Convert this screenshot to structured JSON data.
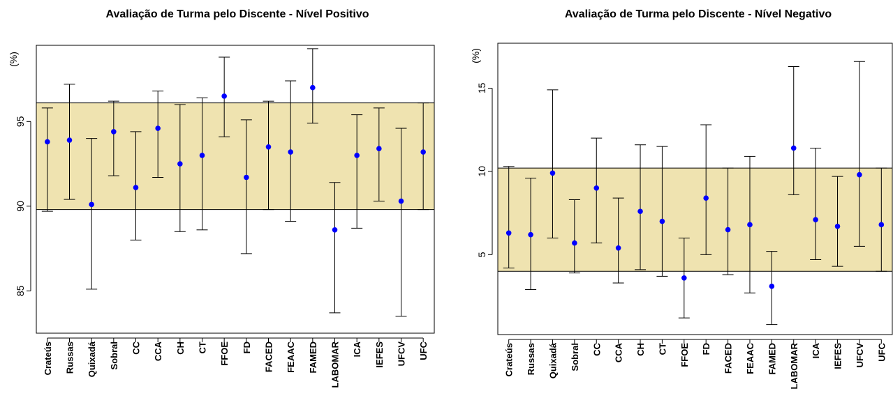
{
  "chart_data": [
    {
      "type": "errorbar",
      "title": "Avaliação de Turma pelo Discente - Nível Positivo",
      "ylabel": "(%)",
      "xlabel": "",
      "ylim": [
        82.5,
        99.5
      ],
      "yticks": [
        "85",
        "90",
        "95"
      ],
      "yticks_values": [
        85,
        90,
        95
      ],
      "band": {
        "low": 89.8,
        "high": 96.1,
        "color": "#efe3b0"
      },
      "point_color": "#0000ff",
      "categories": [
        "Crateús",
        "Russas",
        "Quixadá",
        "Sobral",
        "CC",
        "CCA",
        "CH",
        "CT",
        "FFOE",
        "FD",
        "FACED",
        "FEAAC",
        "FAMED",
        "LABOMAR",
        "ICA",
        "IEFES",
        "UFCV",
        "UFC"
      ],
      "values": [
        93.8,
        93.9,
        90.1,
        94.4,
        91.1,
        94.6,
        92.5,
        93.0,
        96.5,
        91.7,
        93.5,
        93.2,
        97.0,
        88.6,
        93.0,
        93.4,
        90.3,
        93.2
      ],
      "lower": [
        89.7,
        90.4,
        85.1,
        91.8,
        88.0,
        91.7,
        88.5,
        88.6,
        94.1,
        87.2,
        89.8,
        89.1,
        94.9,
        83.7,
        88.7,
        90.3,
        83.5,
        89.8
      ],
      "upper": [
        95.8,
        97.2,
        94.0,
        96.2,
        94.4,
        96.8,
        96.0,
        96.4,
        98.8,
        95.1,
        96.2,
        97.4,
        99.3,
        91.4,
        95.4,
        95.8,
        94.6,
        96.1
      ]
    },
    {
      "type": "errorbar",
      "title": "Avaliação de Turma pelo Discente - Nível Negativo",
      "ylabel": "(%)",
      "xlabel": "",
      "ylim": [
        0.2,
        17.7
      ],
      "yticks": [
        "5",
        "10",
        "15"
      ],
      "yticks_values": [
        5,
        10,
        15
      ],
      "band": {
        "low": 4.0,
        "high": 10.2,
        "color": "#efe3b0"
      },
      "point_color": "#0000ff",
      "categories": [
        "Crateús",
        "Russas",
        "Quixadá",
        "Sobral",
        "CC",
        "CCA",
        "CH",
        "CT",
        "FFOE",
        "FD",
        "FACED",
        "FEAAC",
        "FAMED",
        "LABOMAR",
        "ICA",
        "IEFES",
        "UFCV",
        "UFC"
      ],
      "values": [
        6.3,
        6.2,
        9.9,
        5.7,
        9.0,
        5.4,
        7.6,
        7.0,
        3.6,
        8.4,
        6.5,
        6.8,
        3.1,
        11.4,
        7.1,
        6.7,
        9.8,
        6.8
      ],
      "lower": [
        4.2,
        2.9,
        6.0,
        3.9,
        5.7,
        3.3,
        4.1,
        3.7,
        1.2,
        5.0,
        3.8,
        2.7,
        0.8,
        8.6,
        4.7,
        4.3,
        5.5,
        4.0
      ],
      "upper": [
        10.3,
        9.6,
        14.9,
        8.3,
        12.0,
        8.4,
        11.6,
        11.5,
        6.0,
        12.8,
        10.2,
        10.9,
        5.2,
        16.3,
        11.4,
        9.7,
        16.6,
        10.2
      ]
    }
  ]
}
